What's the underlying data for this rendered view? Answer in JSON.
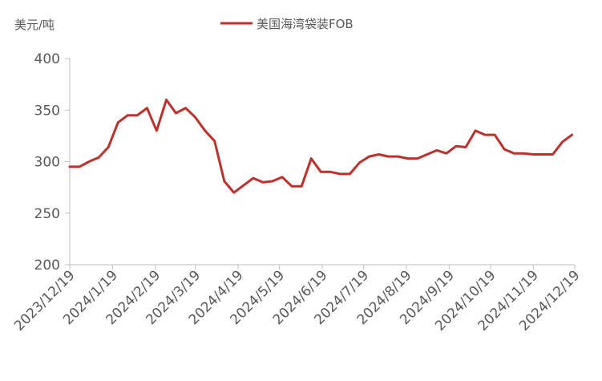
{
  "chart_data": {
    "type": "line",
    "ylabel": "美元/吨",
    "ylim": [
      200,
      400
    ],
    "yticks": [
      200,
      250,
      300,
      350,
      400
    ],
    "xlim": [
      "2023-12-19",
      "2024-12-19"
    ],
    "xtick_labels": [
      "2023/12/19",
      "2024/1/19",
      "2024/2/19",
      "2024/3/19",
      "2024/4/19",
      "2024/5/19",
      "2024/6/19",
      "2024/7/19",
      "2024/8/19",
      "2024/9/19",
      "2024/10/19",
      "2024/11/19",
      "2024/12/19"
    ],
    "xtick_dates": [
      "2023-12-19",
      "2024-01-19",
      "2024-02-19",
      "2024-03-19",
      "2024-04-19",
      "2024-05-19",
      "2024-06-19",
      "2024-07-19",
      "2024-08-19",
      "2024-09-19",
      "2024-10-19",
      "2024-11-19",
      "2024-12-19"
    ],
    "legend_position": "top-center",
    "grid": false,
    "series": [
      {
        "name": "美国海湾袋装FOB",
        "color": "#c0302b",
        "points": [
          [
            "2023-12-19",
            295
          ],
          [
            "2023-12-26",
            295
          ],
          [
            "2024-01-02",
            300
          ],
          [
            "2024-01-09",
            304
          ],
          [
            "2024-01-16",
            314
          ],
          [
            "2024-01-23",
            338
          ],
          [
            "2024-01-30",
            345
          ],
          [
            "2024-02-06",
            345
          ],
          [
            "2024-02-13",
            352
          ],
          [
            "2024-02-20",
            330
          ],
          [
            "2024-02-27",
            360
          ],
          [
            "2024-03-05",
            347
          ],
          [
            "2024-03-12",
            352
          ],
          [
            "2024-03-19",
            343
          ],
          [
            "2024-03-26",
            330
          ],
          [
            "2024-04-02",
            320
          ],
          [
            "2024-04-09",
            281
          ],
          [
            "2024-04-16",
            270
          ],
          [
            "2024-04-23",
            277
          ],
          [
            "2024-04-30",
            284
          ],
          [
            "2024-05-07",
            280
          ],
          [
            "2024-05-14",
            281
          ],
          [
            "2024-05-21",
            285
          ],
          [
            "2024-05-28",
            276
          ],
          [
            "2024-06-04",
            276
          ],
          [
            "2024-06-11",
            303
          ],
          [
            "2024-06-18",
            290
          ],
          [
            "2024-06-25",
            290
          ],
          [
            "2024-07-02",
            288
          ],
          [
            "2024-07-09",
            288
          ],
          [
            "2024-07-16",
            299
          ],
          [
            "2024-07-23",
            305
          ],
          [
            "2024-07-30",
            307
          ],
          [
            "2024-08-06",
            305
          ],
          [
            "2024-08-13",
            305
          ],
          [
            "2024-08-20",
            303
          ],
          [
            "2024-08-27",
            303
          ],
          [
            "2024-09-03",
            307
          ],
          [
            "2024-09-10",
            311
          ],
          [
            "2024-09-17",
            308
          ],
          [
            "2024-09-24",
            315
          ],
          [
            "2024-10-01",
            314
          ],
          [
            "2024-10-08",
            330
          ],
          [
            "2024-10-15",
            326
          ],
          [
            "2024-10-22",
            326
          ],
          [
            "2024-10-29",
            312
          ],
          [
            "2024-11-05",
            308
          ],
          [
            "2024-11-12",
            308
          ],
          [
            "2024-11-19",
            307
          ],
          [
            "2024-11-26",
            307
          ],
          [
            "2024-12-03",
            307
          ],
          [
            "2024-12-10",
            319
          ],
          [
            "2024-12-17",
            326
          ]
        ]
      }
    ]
  }
}
